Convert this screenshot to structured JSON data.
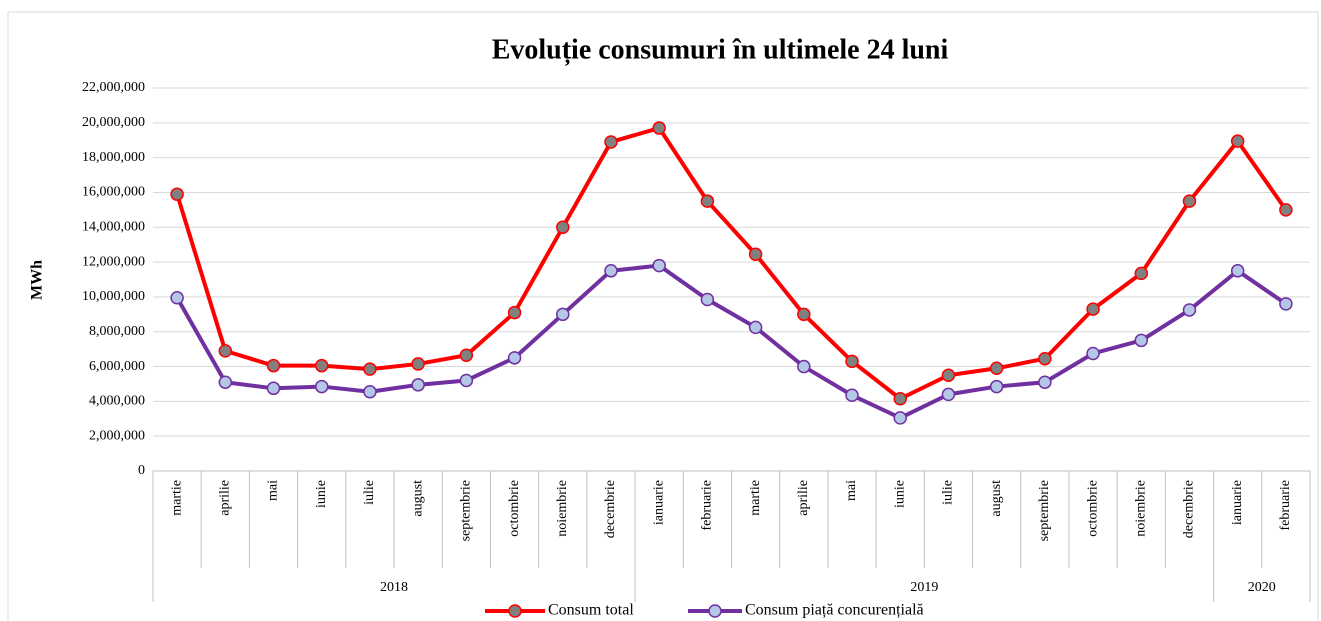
{
  "chart_data": {
    "type": "line",
    "title": "Evoluție consumuri în ultimele 24 luni",
    "y_label": "MWh",
    "categories": [
      "martie",
      "aprilie",
      "mai",
      "iunie",
      "iulie",
      "august",
      "septembrie",
      "octombrie",
      "noiembrie",
      "decembrie",
      "ianuarie",
      "februarie",
      "martie",
      "aprilie",
      "mai",
      "iunie",
      "iulie",
      "august",
      "septembrie",
      "octombrie",
      "noiembrie",
      "decembrie",
      "ianuarie",
      "februarie"
    ],
    "x_groups": [
      {
        "label": "2018",
        "count": 10
      },
      {
        "label": "2019",
        "count": 12
      },
      {
        "label": "2020",
        "count": 2
      }
    ],
    "series": [
      {
        "name": "Consum total",
        "color": "#ff0000",
        "marker_color": "#808080",
        "values": [
          15900000,
          6900000,
          6050000,
          6050000,
          5850000,
          6150000,
          6650000,
          9100000,
          14000000,
          18900000,
          19700000,
          15500000,
          12450000,
          9000000,
          6300000,
          4150000,
          5500000,
          5900000,
          6450000,
          9300000,
          11350000,
          15500000,
          18950000,
          15000000
        ]
      },
      {
        "name": "Consum piață concurențială",
        "color": "#7030a0",
        "marker_color": "#b4c7e7",
        "values": [
          9950000,
          5100000,
          4750000,
          4850000,
          4550000,
          4950000,
          5200000,
          6500000,
          9000000,
          11500000,
          11800000,
          9850000,
          8250000,
          6000000,
          4350000,
          3050000,
          4400000,
          4850000,
          5100000,
          6750000,
          7500000,
          9250000,
          11500000,
          9600000
        ]
      }
    ],
    "ylim": [
      0,
      22000000
    ],
    "yticks": [
      0,
      {
        "value": 2000000,
        "label": "2,000,000"
      },
      {
        "value": 4000000,
        "label": "4,000,000"
      },
      {
        "value": 6000000,
        "label": "6,000,000"
      },
      {
        "value": 8000000,
        "label": "8,000,000"
      },
      {
        "value": 10000000,
        "label": "10,000,000"
      },
      {
        "value": 12000000,
        "label": "12,000,000"
      },
      {
        "value": 14000000,
        "label": "14,000,000"
      },
      {
        "value": 16000000,
        "label": "16,000,000"
      },
      {
        "value": 18000000,
        "label": "18,000,000"
      },
      {
        "value": 20000000,
        "label": "20,000,000"
      },
      {
        "value": 22000000,
        "label": "22,000,000"
      }
    ],
    "grid": true,
    "legend": "bottom"
  }
}
